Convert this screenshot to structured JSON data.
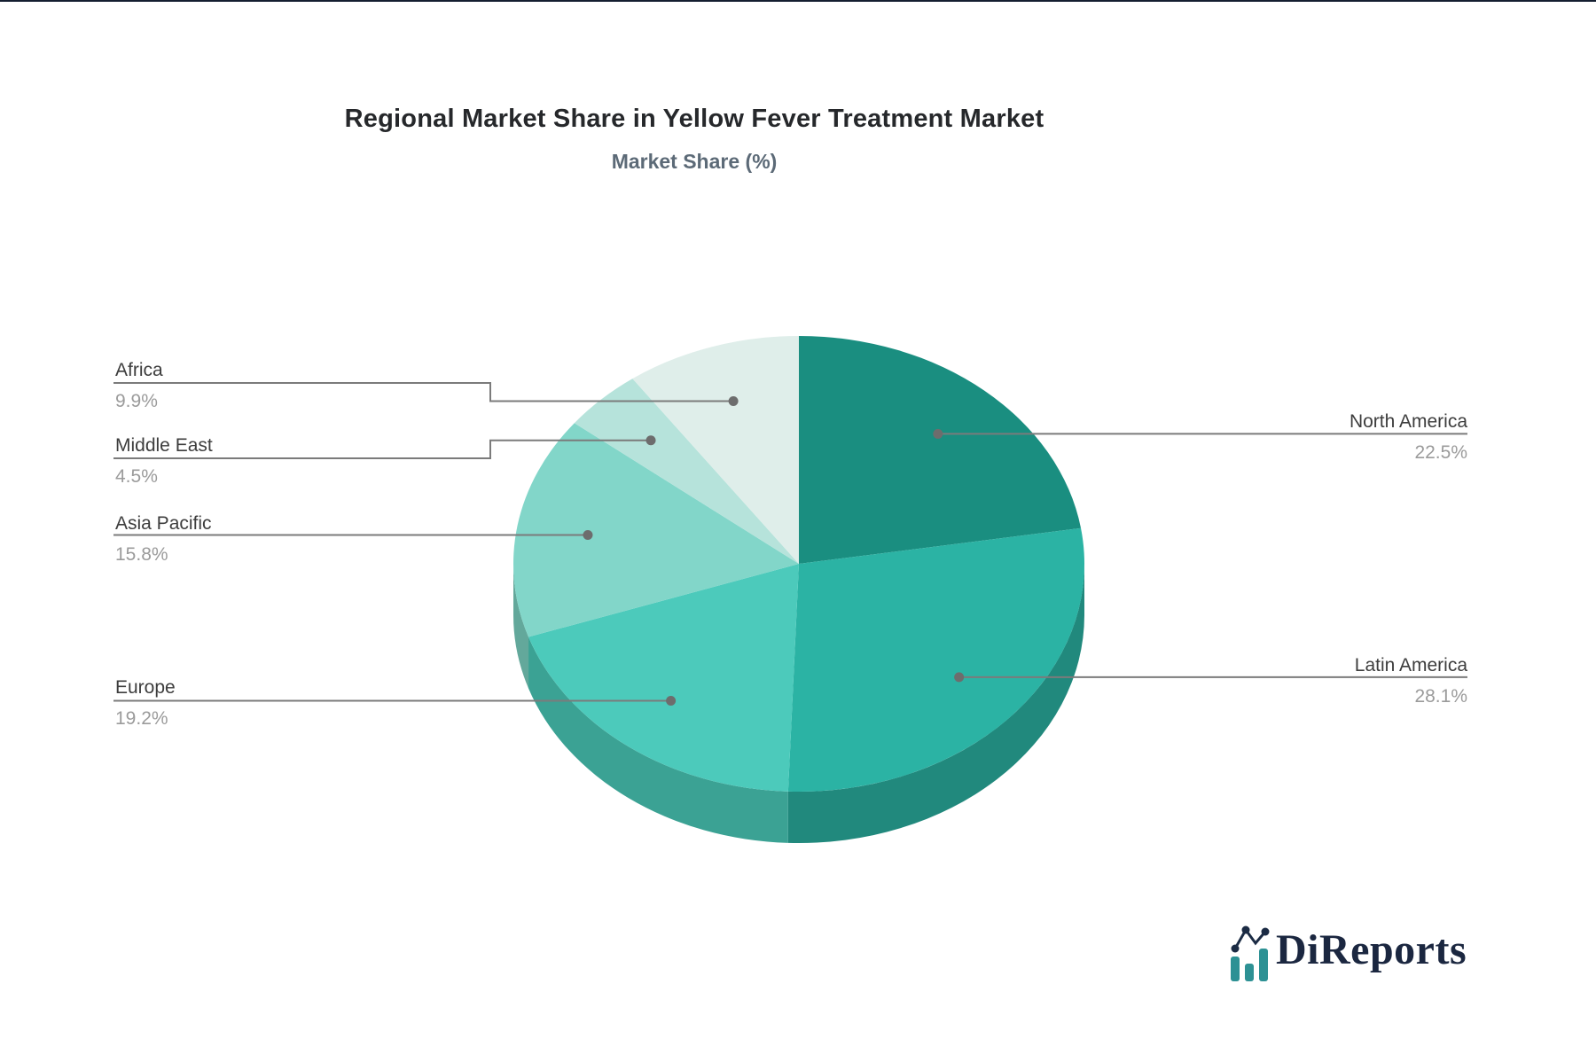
{
  "page": {
    "background": "#ffffff",
    "top_border_color": "#141e30"
  },
  "header": {
    "title": "Regional Market Share in Yellow Fever Treatment Market",
    "subtitle": "Market Share (%)"
  },
  "chart_data": {
    "type": "pie",
    "style": "3d-pie",
    "title": "Regional Market Share in Yellow Fever Treatment Market",
    "subtitle": "Market Share (%)",
    "unit": "%",
    "total": 100,
    "start_angle_deg": -90,
    "direction": "clockwise",
    "slices": [
      {
        "label": "North America",
        "value": 22.5,
        "display": "22.5%",
        "color": "#1a8e80",
        "side_color": "#17796d"
      },
      {
        "label": "Latin America",
        "value": 28.1,
        "display": "28.1%",
        "color": "#2bb3a4",
        "side_color": "#21897d"
      },
      {
        "label": "Europe",
        "value": 19.2,
        "display": "19.2%",
        "color": "#4ccabb",
        "side_color": "#3ba294"
      },
      {
        "label": "Asia Pacific",
        "value": 15.8,
        "display": "15.8%",
        "color": "#82d6c9",
        "side_color": "#63a89b"
      },
      {
        "label": "Middle East",
        "value": 4.5,
        "display": "4.5%",
        "color": "#b6e3db",
        "side_color": "#92b6af"
      },
      {
        "label": "Africa",
        "value": 9.9,
        "display": "9.9%",
        "color": "#dfeeea",
        "side_color": "#b2beba"
      }
    ],
    "callout_line_color": "#7b7b7b",
    "callout_dot_color": "#6d6d6d",
    "label_color": "#3d3d3d",
    "value_color": "#9b9b9b"
  },
  "branding": {
    "logo_text": "DiReports",
    "logo_text_color": "#1b2740",
    "logo_bar_color": "#2d9194",
    "logo_line_color": "#1b2b44"
  }
}
